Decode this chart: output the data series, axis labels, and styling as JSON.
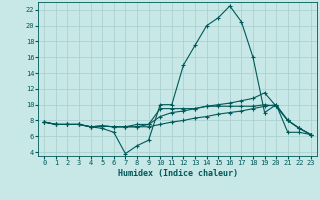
{
  "xlabel": "Humidex (Indice chaleur)",
  "bg_color": "#c8e8e8",
  "grid_color": "#a8cece",
  "line_color": "#005858",
  "xlim": [
    -0.5,
    23.5
  ],
  "ylim": [
    3.5,
    23.0
  ],
  "xticks": [
    0,
    1,
    2,
    3,
    4,
    5,
    6,
    7,
    8,
    9,
    10,
    11,
    12,
    13,
    14,
    15,
    16,
    17,
    18,
    19,
    20,
    21,
    22,
    23
  ],
  "yticks": [
    4,
    6,
    8,
    10,
    12,
    14,
    16,
    18,
    20,
    22
  ],
  "line1_x": [
    0,
    1,
    2,
    3,
    4,
    5,
    6,
    7,
    8,
    9,
    10,
    11,
    12,
    13,
    14,
    15,
    16,
    17,
    18,
    19,
    20,
    21,
    22,
    23
  ],
  "line1_y": [
    7.8,
    7.5,
    7.5,
    7.5,
    7.2,
    7.0,
    6.5,
    3.8,
    4.8,
    5.5,
    10.0,
    10.0,
    15.0,
    17.5,
    20.0,
    21.0,
    22.5,
    20.5,
    16.0,
    9.0,
    10.0,
    8.0,
    7.0,
    6.2
  ],
  "line2_x": [
    0,
    1,
    2,
    3,
    4,
    5,
    6,
    7,
    8,
    9,
    10,
    11,
    12,
    13,
    14,
    15,
    16,
    17,
    18,
    19,
    20,
    21,
    22,
    23
  ],
  "line2_y": [
    7.8,
    7.5,
    7.5,
    7.5,
    7.2,
    7.3,
    7.2,
    7.2,
    7.2,
    7.2,
    7.5,
    7.8,
    8.0,
    8.3,
    8.5,
    8.8,
    9.0,
    9.2,
    9.5,
    9.8,
    10.0,
    6.5,
    6.5,
    6.2
  ],
  "line3_x": [
    0,
    1,
    2,
    3,
    4,
    5,
    6,
    7,
    8,
    9,
    10,
    11,
    12,
    13,
    14,
    15,
    16,
    17,
    18,
    19,
    20,
    21,
    22,
    23
  ],
  "line3_y": [
    7.8,
    7.5,
    7.5,
    7.5,
    7.2,
    7.3,
    7.2,
    7.2,
    7.2,
    7.5,
    8.5,
    9.0,
    9.2,
    9.5,
    9.8,
    10.0,
    10.2,
    10.5,
    10.8,
    11.5,
    9.8,
    8.0,
    7.0,
    6.2
  ],
  "line4_x": [
    0,
    1,
    2,
    3,
    4,
    5,
    6,
    7,
    8,
    9,
    10,
    11,
    12,
    13,
    14,
    15,
    16,
    17,
    18,
    19,
    20,
    21,
    22,
    23
  ],
  "line4_y": [
    7.8,
    7.5,
    7.5,
    7.5,
    7.2,
    7.3,
    7.2,
    7.2,
    7.5,
    7.5,
    9.5,
    9.5,
    9.5,
    9.5,
    9.8,
    9.8,
    9.8,
    9.8,
    9.8,
    10.0,
    9.8,
    8.0,
    7.0,
    6.2
  ]
}
